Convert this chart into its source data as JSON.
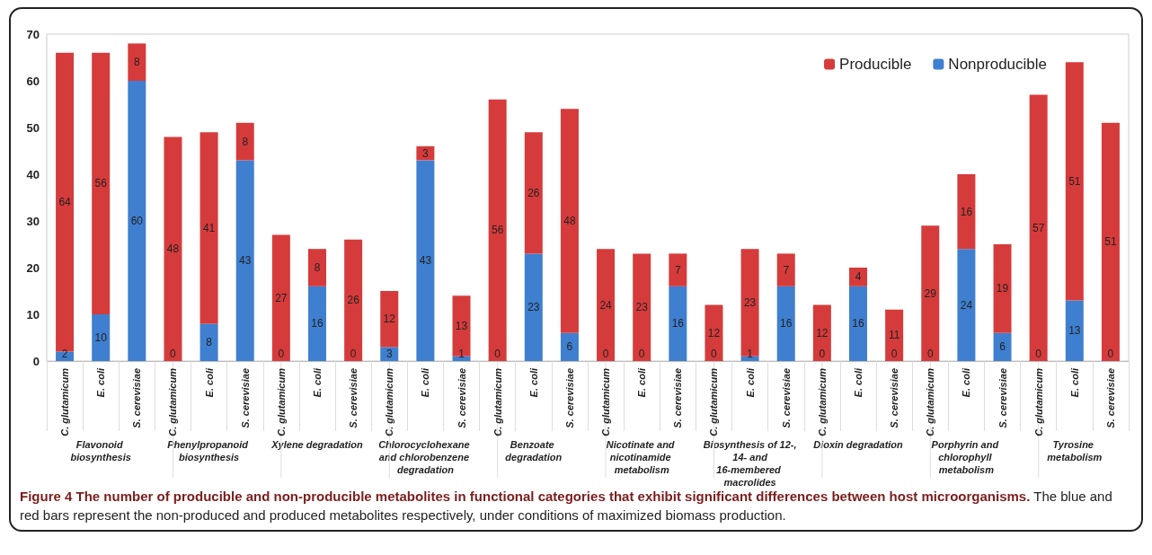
{
  "chart_data": {
    "type": "bar",
    "stacked": true,
    "title": "Figure 4 The number of producible and non-producible metabolites in functional categories that exhibit significant differences between host microorganisms.",
    "categories": [
      "C. glutamicum",
      "E. coli",
      "S. cerevisiae",
      "C. glutamicum",
      "E. coli",
      "S. cerevisiae",
      "C. glutamicum",
      "E. coli",
      "S. cerevisiae",
      "C. glutamicum",
      "E. coli",
      "S. cerevisiae",
      "C. glutamicum",
      "E. coli",
      "S. cerevisiae",
      "C. glutamicum",
      "E. coli",
      "S. cerevisiae",
      "C. glutamicum",
      "E. coli",
      "S. cerevisiae",
      "C. glutamicum",
      "E. coli",
      "S. cerevisiae",
      "C. glutamicum",
      "E. coli",
      "S. cerevisiae",
      "C. glutamicum",
      "E. coli",
      "S. cerevisiae"
    ],
    "series": [
      {
        "name": "Nonproducible",
        "color": "#3f7fd0",
        "values": [
          2,
          10,
          60,
          0,
          8,
          43,
          0,
          16,
          0,
          3,
          43,
          1,
          0,
          23,
          6,
          0,
          0,
          16,
          0,
          1,
          16,
          0,
          16,
          0,
          0,
          24,
          6,
          0,
          13,
          0
        ]
      },
      {
        "name": "Producible",
        "color": "#d63b3b",
        "values": [
          64,
          56,
          8,
          48,
          41,
          8,
          27,
          8,
          26,
          12,
          3,
          13,
          56,
          26,
          48,
          24,
          23,
          7,
          12,
          23,
          7,
          12,
          4,
          11,
          29,
          16,
          19,
          57,
          51,
          51
        ]
      }
    ],
    "ylim": [
      0,
      70
    ],
    "yticks": [
      0,
      10,
      20,
      30,
      40,
      50,
      60,
      70
    ],
    "grid": false,
    "legend": "top right",
    "data_labels": true,
    "annotations": [
      "Flavonoid biosynthesis",
      "Phenylpropanoid biosynthesis",
      "Xylene degradation",
      "Chlorocyclohexane and chlorobenzene degradation",
      "Benzoate degradation",
      "Nicotinate and nicotinamide metabolism",
      "Biosynthesis of 12-, 14- and 16-membered macrolides",
      "Dioxin degradation",
      "Porphyrin and chlorophyll metabolism",
      "Tyrosine metabolism",
      "The blue and red bars represent the non-produced and produced metabolites respectively, under conditions of maximized biomass production."
    ]
  }
}
